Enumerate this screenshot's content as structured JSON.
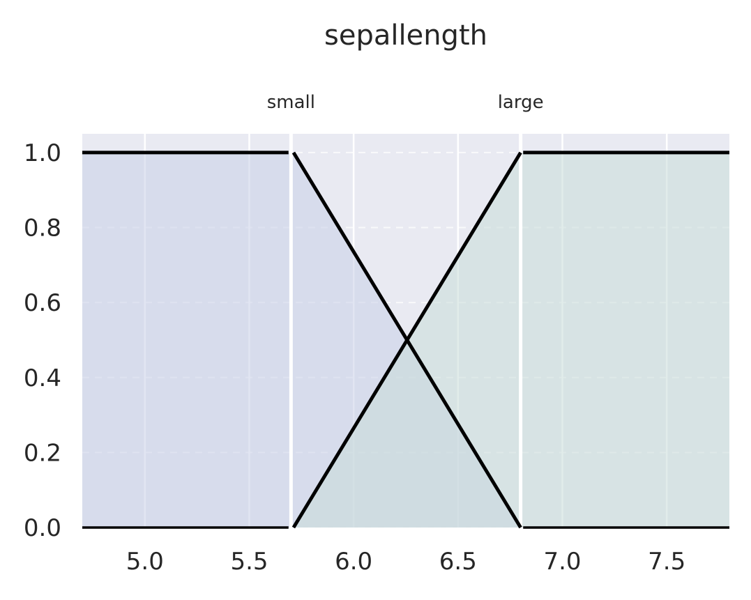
{
  "chart_data": {
    "type": "line",
    "title": "sepallength",
    "xlabel": "",
    "ylabel": "",
    "xlim": [
      4.7,
      7.8
    ],
    "ylim": [
      0.0,
      1.05
    ],
    "x_ticks": [
      "5.0",
      "5.5",
      "6.0",
      "6.5",
      "7.0",
      "7.5"
    ],
    "x_tick_values": [
      5.0,
      5.5,
      6.0,
      6.5,
      7.0,
      7.5
    ],
    "y_ticks": [
      "0.0",
      "0.2",
      "0.4",
      "0.6",
      "0.8",
      "1.0"
    ],
    "y_tick_values": [
      0.0,
      0.2,
      0.4,
      0.6,
      0.8,
      1.0
    ],
    "grid": true,
    "partition_boundaries": [
      5.7,
      6.8
    ],
    "series": [
      {
        "name": "small",
        "color": "#000000",
        "fill": "#c9d0e8",
        "label_x": 5.7,
        "points": [
          [
            4.7,
            1.0
          ],
          [
            5.7,
            1.0
          ],
          [
            5.7,
            0.0
          ],
          [
            6.8,
            0.0
          ],
          [
            5.7,
            1.0
          ]
        ],
        "shape": [
          [
            4.7,
            1.0
          ],
          [
            5.7,
            1.0
          ],
          [
            6.8,
            0.0
          ]
        ]
      },
      {
        "name": "large",
        "color": "#000000",
        "fill": "#c9dcd8",
        "label_x": 6.8,
        "shape": [
          [
            5.7,
            0.0
          ],
          [
            6.8,
            1.0
          ],
          [
            7.8,
            1.0
          ]
        ]
      }
    ],
    "background": "#e9eaf2",
    "grid_color": "#ffffff"
  }
}
